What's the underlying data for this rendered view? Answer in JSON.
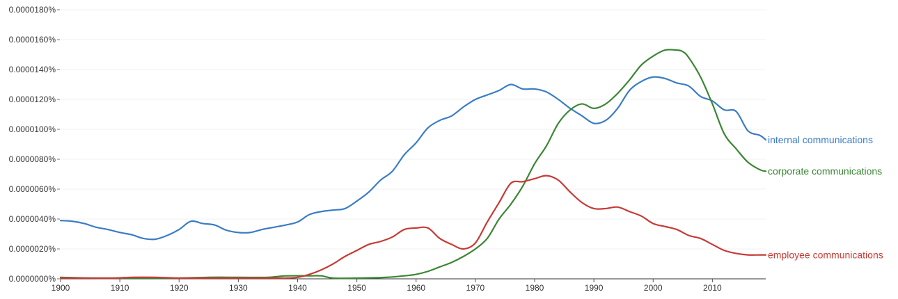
{
  "chart_data": {
    "type": "line",
    "title": "",
    "xlabel": "",
    "ylabel": "",
    "xlim": [
      1900,
      2019
    ],
    "ylim": [
      0,
      1.8e-06
    ],
    "grid": true,
    "legend": "inline-right",
    "x_ticks": [
      {
        "value": 1900,
        "label": "1900"
      },
      {
        "value": 1910,
        "label": "1910"
      },
      {
        "value": 1920,
        "label": "1920"
      },
      {
        "value": 1930,
        "label": "1930"
      },
      {
        "value": 1940,
        "label": "1940"
      },
      {
        "value": 1950,
        "label": "1950"
      },
      {
        "value": 1960,
        "label": "1960"
      },
      {
        "value": 1970,
        "label": "1970"
      },
      {
        "value": 1980,
        "label": "1980"
      },
      {
        "value": 1990,
        "label": "1990"
      },
      {
        "value": 2000,
        "label": "2000"
      },
      {
        "value": 2010,
        "label": "2010"
      }
    ],
    "y_ticks": [
      {
        "value": 0,
        "label": "0.0000000%"
      },
      {
        "value": 2e-07,
        "label": "0.0000020%"
      },
      {
        "value": 4e-07,
        "label": "0.0000040%"
      },
      {
        "value": 6e-07,
        "label": "0.0000060%"
      },
      {
        "value": 8e-07,
        "label": "0.0000080%"
      },
      {
        "value": 1e-06,
        "label": "0.0000100%"
      },
      {
        "value": 1.2e-06,
        "label": "0.0000120%"
      },
      {
        "value": 1.4e-06,
        "label": "0.0000140%"
      },
      {
        "value": 1.6e-06,
        "label": "0.0000160%"
      },
      {
        "value": 1.8e-06,
        "label": "0.0000180%"
      }
    ],
    "series": [
      {
        "name": "internal communications",
        "color": "#3b7dc4",
        "points": [
          [
            1900,
            3.9e-07
          ],
          [
            1902,
            3.85e-07
          ],
          [
            1904,
            3.7e-07
          ],
          [
            1906,
            3.45e-07
          ],
          [
            1908,
            3.3e-07
          ],
          [
            1910,
            3.1e-07
          ],
          [
            1912,
            2.95e-07
          ],
          [
            1914,
            2.7e-07
          ],
          [
            1916,
            2.65e-07
          ],
          [
            1918,
            2.9e-07
          ],
          [
            1920,
            3.3e-07
          ],
          [
            1922,
            3.85e-07
          ],
          [
            1924,
            3.7e-07
          ],
          [
            1926,
            3.6e-07
          ],
          [
            1928,
            3.25e-07
          ],
          [
            1930,
            3.1e-07
          ],
          [
            1932,
            3.1e-07
          ],
          [
            1934,
            3.3e-07
          ],
          [
            1936,
            3.45e-07
          ],
          [
            1938,
            3.6e-07
          ],
          [
            1940,
            3.8e-07
          ],
          [
            1942,
            4.3e-07
          ],
          [
            1944,
            4.5e-07
          ],
          [
            1946,
            4.6e-07
          ],
          [
            1948,
            4.7e-07
          ],
          [
            1950,
            5.2e-07
          ],
          [
            1952,
            5.8e-07
          ],
          [
            1954,
            6.6e-07
          ],
          [
            1956,
            7.2e-07
          ],
          [
            1958,
            8.3e-07
          ],
          [
            1960,
            9.1e-07
          ],
          [
            1962,
            1.01e-06
          ],
          [
            1964,
            1.06e-06
          ],
          [
            1966,
            1.09e-06
          ],
          [
            1968,
            1.15e-06
          ],
          [
            1970,
            1.2e-06
          ],
          [
            1972,
            1.23e-06
          ],
          [
            1974,
            1.26e-06
          ],
          [
            1976,
            1.3e-06
          ],
          [
            1978,
            1.27e-06
          ],
          [
            1980,
            1.27e-06
          ],
          [
            1982,
            1.25e-06
          ],
          [
            1984,
            1.2e-06
          ],
          [
            1986,
            1.14e-06
          ],
          [
            1988,
            1.09e-06
          ],
          [
            1990,
            1.04e-06
          ],
          [
            1992,
            1.06e-06
          ],
          [
            1994,
            1.14e-06
          ],
          [
            1996,
            1.26e-06
          ],
          [
            1998,
            1.32e-06
          ],
          [
            2000,
            1.35e-06
          ],
          [
            2002,
            1.34e-06
          ],
          [
            2004,
            1.31e-06
          ],
          [
            2006,
            1.29e-06
          ],
          [
            2008,
            1.22e-06
          ],
          [
            2010,
            1.19e-06
          ],
          [
            2012,
            1.13e-06
          ],
          [
            2014,
            1.12e-06
          ],
          [
            2016,
            9.9e-07
          ],
          [
            2018,
            9.6e-07
          ],
          [
            2019,
            9.3e-07
          ]
        ]
      },
      {
        "name": "corporate communications",
        "color": "#3a8733",
        "points": [
          [
            1900,
            1e-08
          ],
          [
            1905,
            5e-09
          ],
          [
            1910,
            5e-09
          ],
          [
            1915,
            5e-09
          ],
          [
            1920,
            5e-09
          ],
          [
            1925,
            1e-08
          ],
          [
            1930,
            1e-08
          ],
          [
            1935,
            1e-08
          ],
          [
            1938,
            2e-08
          ],
          [
            1942,
            2e-08
          ],
          [
            1944,
            2e-08
          ],
          [
            1946,
            5e-09
          ],
          [
            1950,
            5e-09
          ],
          [
            1955,
            1e-08
          ],
          [
            1958,
            2e-08
          ],
          [
            1960,
            3e-08
          ],
          [
            1962,
            5e-08
          ],
          [
            1964,
            8e-08
          ],
          [
            1966,
            1.1e-07
          ],
          [
            1968,
            1.5e-07
          ],
          [
            1970,
            2e-07
          ],
          [
            1972,
            2.7e-07
          ],
          [
            1974,
            4e-07
          ],
          [
            1976,
            5e-07
          ],
          [
            1978,
            6.2e-07
          ],
          [
            1980,
            7.7e-07
          ],
          [
            1982,
            8.9e-07
          ],
          [
            1984,
            1.04e-06
          ],
          [
            1986,
            1.13e-06
          ],
          [
            1988,
            1.17e-06
          ],
          [
            1990,
            1.14e-06
          ],
          [
            1992,
            1.17e-06
          ],
          [
            1994,
            1.24e-06
          ],
          [
            1996,
            1.33e-06
          ],
          [
            1998,
            1.43e-06
          ],
          [
            2000,
            1.49e-06
          ],
          [
            2002,
            1.53e-06
          ],
          [
            2004,
            1.53e-06
          ],
          [
            2005,
            1.52e-06
          ],
          [
            2006,
            1.48e-06
          ],
          [
            2008,
            1.35e-06
          ],
          [
            2010,
            1.17e-06
          ],
          [
            2012,
            9.7e-07
          ],
          [
            2014,
            8.7e-07
          ],
          [
            2016,
            7.8e-07
          ],
          [
            2018,
            7.3e-07
          ],
          [
            2019,
            7.2e-07
          ]
        ]
      },
      {
        "name": "employee communications",
        "color": "#c73a35",
        "points": [
          [
            1900,
            5e-09
          ],
          [
            1905,
            5e-09
          ],
          [
            1909,
            5e-09
          ],
          [
            1912,
            1e-08
          ],
          [
            1916,
            1e-08
          ],
          [
            1920,
            5e-09
          ],
          [
            1925,
            5e-09
          ],
          [
            1930,
            5e-09
          ],
          [
            1935,
            5e-09
          ],
          [
            1938,
            5e-09
          ],
          [
            1940,
            1e-08
          ],
          [
            1942,
            3e-08
          ],
          [
            1944,
            6e-08
          ],
          [
            1946,
            1e-07
          ],
          [
            1948,
            1.5e-07
          ],
          [
            1950,
            1.9e-07
          ],
          [
            1952,
            2.3e-07
          ],
          [
            1954,
            2.5e-07
          ],
          [
            1956,
            2.8e-07
          ],
          [
            1958,
            3.3e-07
          ],
          [
            1960,
            3.4e-07
          ],
          [
            1962,
            3.4e-07
          ],
          [
            1964,
            2.7e-07
          ],
          [
            1966,
            2.3e-07
          ],
          [
            1968,
            2e-07
          ],
          [
            1970,
            2.4e-07
          ],
          [
            1972,
            3.8e-07
          ],
          [
            1974,
            5.1e-07
          ],
          [
            1976,
            6.4e-07
          ],
          [
            1978,
            6.5e-07
          ],
          [
            1980,
            6.7e-07
          ],
          [
            1982,
            6.9e-07
          ],
          [
            1984,
            6.6e-07
          ],
          [
            1986,
            5.8e-07
          ],
          [
            1988,
            5.1e-07
          ],
          [
            1990,
            4.7e-07
          ],
          [
            1992,
            4.7e-07
          ],
          [
            1994,
            4.8e-07
          ],
          [
            1996,
            4.5e-07
          ],
          [
            1998,
            4.2e-07
          ],
          [
            2000,
            3.7e-07
          ],
          [
            2002,
            3.5e-07
          ],
          [
            2004,
            3.3e-07
          ],
          [
            2006,
            2.9e-07
          ],
          [
            2008,
            2.7e-07
          ],
          [
            2010,
            2.3e-07
          ],
          [
            2012,
            1.9e-07
          ],
          [
            2014,
            1.7e-07
          ],
          [
            2016,
            1.6e-07
          ],
          [
            2018,
            1.6e-07
          ],
          [
            2019,
            1.6e-07
          ]
        ]
      }
    ]
  }
}
